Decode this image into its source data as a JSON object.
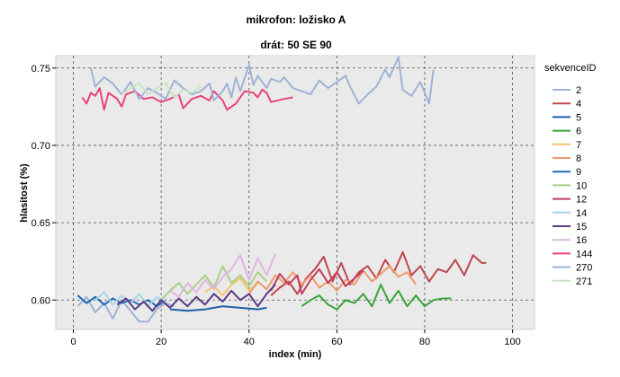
{
  "chart_data": {
    "type": "line",
    "title": "mikrofon: ložisko A",
    "subtitle": "drát: 50 SE 90",
    "xlabel": "index (min)",
    "ylabel": "hlasitost (%)",
    "xlim": [
      -4,
      105
    ],
    "ylim": [
      0.581,
      0.758
    ],
    "x_ticks": [
      0,
      20,
      40,
      60,
      80,
      100
    ],
    "y_ticks": [
      0.6,
      0.65,
      0.7,
      0.75
    ],
    "y_tick_labels": [
      "0.60",
      "0.65",
      "0.70",
      "0.75"
    ],
    "grid": true,
    "legend_title": "sekvenceID",
    "legend_position": "right",
    "series": [
      {
        "name": "2",
        "color": "#9fb3d6",
        "points": [
          [
            1,
            0.596
          ],
          [
            3,
            0.602
          ],
          [
            5,
            0.592
          ],
          [
            7,
            0.598
          ],
          [
            9,
            0.588
          ],
          [
            11,
            0.6
          ],
          [
            13,
            0.593
          ],
          [
            15,
            0.586
          ],
          [
            17,
            0.586
          ],
          [
            19,
            0.594
          ],
          [
            21,
            0.598
          ],
          [
            23,
            0.596
          ]
        ]
      },
      {
        "name": "4",
        "color": "#c0464f",
        "points": [
          [
            45,
            0.603
          ],
          [
            47,
            0.608
          ],
          [
            49,
            0.612
          ],
          [
            51,
            0.604
          ],
          [
            53,
            0.614
          ],
          [
            55,
            0.62
          ],
          [
            57,
            0.628
          ],
          [
            59,
            0.612
          ],
          [
            61,
            0.624
          ],
          [
            63,
            0.61
          ],
          [
            65,
            0.618
          ],
          [
            67,
            0.622
          ],
          [
            69,
            0.614
          ],
          [
            71,
            0.626
          ],
          [
            73,
            0.618
          ],
          [
            75,
            0.631
          ],
          [
            77,
            0.616
          ],
          [
            79,
            0.622
          ],
          [
            81,
            0.612
          ],
          [
            83,
            0.62
          ],
          [
            85,
            0.618
          ],
          [
            87,
            0.626
          ],
          [
            89,
            0.616
          ],
          [
            91,
            0.629
          ],
          [
            93,
            0.624
          ],
          [
            94,
            0.624
          ]
        ]
      },
      {
        "name": "5",
        "color": "#1f5fa8",
        "points": [
          [
            22,
            0.594
          ],
          [
            26,
            0.593
          ],
          [
            30,
            0.594
          ],
          [
            34,
            0.596
          ],
          [
            38,
            0.595
          ],
          [
            42,
            0.594
          ],
          [
            44,
            0.595
          ]
        ]
      },
      {
        "name": "6",
        "color": "#3aa33a",
        "points": [
          [
            52,
            0.596
          ],
          [
            54,
            0.6
          ],
          [
            56,
            0.603
          ],
          [
            58,
            0.597
          ],
          [
            60,
            0.594
          ],
          [
            62,
            0.6
          ],
          [
            64,
            0.598
          ],
          [
            66,
            0.604
          ],
          [
            68,
            0.596
          ],
          [
            70,
            0.61
          ],
          [
            72,
            0.598
          ],
          [
            74,
            0.606
          ],
          [
            76,
            0.596
          ],
          [
            78,
            0.603
          ],
          [
            80,
            0.596
          ],
          [
            82,
            0.6
          ],
          [
            84,
            0.601
          ],
          [
            86,
            0.601
          ]
        ]
      },
      {
        "name": "7",
        "color": "#f5c56a",
        "points": [
          [
            30,
            0.605
          ],
          [
            32,
            0.609
          ],
          [
            34,
            0.603
          ],
          [
            36,
            0.61
          ],
          [
            38,
            0.614
          ],
          [
            40,
            0.606
          ],
          [
            42,
            0.611
          ]
        ]
      },
      {
        "name": "8",
        "color": "#ef9a6c",
        "points": [
          [
            40,
            0.604
          ],
          [
            42,
            0.612
          ],
          [
            44,
            0.607
          ],
          [
            46,
            0.616
          ],
          [
            48,
            0.611
          ],
          [
            50,
            0.618
          ],
          [
            52,
            0.61
          ],
          [
            54,
            0.616
          ],
          [
            56,
            0.608
          ],
          [
            58,
            0.612
          ],
          [
            60,
            0.606
          ],
          [
            62,
            0.613
          ],
          [
            64,
            0.61
          ],
          [
            66,
            0.619
          ],
          [
            68,
            0.612
          ],
          [
            70,
            0.617
          ],
          [
            72,
            0.622
          ],
          [
            74,
            0.615
          ],
          [
            76,
            0.618
          ],
          [
            78,
            0.61
          ]
        ]
      },
      {
        "name": "9",
        "color": "#1c6bb5",
        "points": [
          [
            1,
            0.603
          ],
          [
            3,
            0.598
          ],
          [
            5,
            0.602
          ],
          [
            7,
            0.597
          ],
          [
            9,
            0.601
          ],
          [
            11,
            0.598
          ],
          [
            13,
            0.6
          ],
          [
            15,
            0.597
          ],
          [
            17,
            0.6
          ],
          [
            19,
            0.596
          ],
          [
            21,
            0.6
          ]
        ]
      },
      {
        "name": "10",
        "color": "#a9cf87",
        "points": [
          [
            20,
            0.6
          ],
          [
            22,
            0.606
          ],
          [
            24,
            0.611
          ],
          [
            26,
            0.604
          ],
          [
            28,
            0.61
          ],
          [
            30,
            0.616
          ],
          [
            32,
            0.608
          ],
          [
            34,
            0.622
          ],
          [
            36,
            0.611
          ],
          [
            38,
            0.616
          ],
          [
            40,
            0.609
          ],
          [
            42,
            0.618
          ],
          [
            44,
            0.612
          ]
        ]
      },
      {
        "name": "12",
        "color": "#c43c5c",
        "points": [
          [
            45,
            0.606
          ],
          [
            47,
            0.617
          ],
          [
            49,
            0.61
          ],
          [
            51,
            0.616
          ],
          [
            52,
            0.604
          ],
          [
            54,
            0.613
          ],
          [
            56,
            0.62
          ],
          [
            58,
            0.611
          ],
          [
            60,
            0.618
          ],
          [
            62,
            0.609
          ],
          [
            64,
            0.614
          ],
          [
            66,
            0.619
          ]
        ]
      },
      {
        "name": "14",
        "color": "#a8d4e8",
        "points": [
          [
            5,
            0.6
          ],
          [
            7,
            0.605
          ],
          [
            9,
            0.597
          ],
          [
            11,
            0.603
          ],
          [
            13,
            0.598
          ],
          [
            15,
            0.604
          ],
          [
            17,
            0.596
          ],
          [
            19,
            0.602
          ],
          [
            21,
            0.599
          ]
        ]
      },
      {
        "name": "15",
        "color": "#5e3a84",
        "points": [
          [
            10,
            0.597
          ],
          [
            12,
            0.601
          ],
          [
            14,
            0.594
          ],
          [
            16,
            0.599
          ],
          [
            18,
            0.593
          ],
          [
            20,
            0.6
          ],
          [
            22,
            0.595
          ],
          [
            24,
            0.601
          ],
          [
            26,
            0.596
          ],
          [
            28,
            0.602
          ],
          [
            30,
            0.597
          ],
          [
            32,
            0.604
          ],
          [
            34,
            0.599
          ],
          [
            36,
            0.606
          ],
          [
            38,
            0.6
          ],
          [
            40,
            0.604
          ],
          [
            42,
            0.596
          ],
          [
            44,
            0.604
          ],
          [
            46,
            0.61
          ]
        ]
      },
      {
        "name": "16",
        "color": "#e0b6e2",
        "points": [
          [
            22,
            0.606
          ],
          [
            24,
            0.602
          ],
          [
            26,
            0.611
          ],
          [
            28,
            0.605
          ],
          [
            30,
            0.613
          ],
          [
            32,
            0.607
          ],
          [
            34,
            0.615
          ],
          [
            36,
            0.62
          ],
          [
            38,
            0.629
          ],
          [
            40,
            0.613
          ],
          [
            42,
            0.627
          ],
          [
            44,
            0.616
          ],
          [
            46,
            0.63
          ]
        ]
      },
      {
        "name": "144",
        "color": "#e8447a",
        "points": [
          [
            2,
            0.731
          ],
          [
            3,
            0.727
          ],
          [
            4,
            0.734
          ],
          [
            5,
            0.732
          ],
          [
            6,
            0.737
          ],
          [
            7,
            0.723
          ],
          [
            8,
            0.734
          ],
          [
            10,
            0.73
          ],
          [
            11,
            0.725
          ],
          [
            12,
            0.733
          ],
          [
            14,
            0.735
          ],
          [
            16,
            0.73
          ],
          [
            18,
            0.731
          ],
          [
            20,
            0.728
          ],
          [
            22,
            0.73
          ],
          [
            24,
            0.733
          ],
          [
            25,
            0.724
          ],
          [
            27,
            0.73
          ],
          [
            29,
            0.732
          ],
          [
            31,
            0.729
          ],
          [
            32,
            0.735
          ],
          [
            34,
            0.729
          ],
          [
            35,
            0.723
          ],
          [
            37,
            0.727
          ],
          [
            39,
            0.735
          ],
          [
            41,
            0.734
          ],
          [
            42,
            0.731
          ],
          [
            43,
            0.736
          ],
          [
            44,
            0.734
          ],
          [
            45,
            0.728
          ],
          [
            48,
            0.73
          ],
          [
            50,
            0.731
          ]
        ]
      },
      {
        "name": "270",
        "color": "#9fb3d6",
        "points": [
          [
            4,
            0.75
          ],
          [
            5,
            0.738
          ],
          [
            7,
            0.744
          ],
          [
            9,
            0.74
          ],
          [
            11,
            0.733
          ],
          [
            13,
            0.741
          ],
          [
            15,
            0.73
          ],
          [
            17,
            0.737
          ],
          [
            19,
            0.734
          ],
          [
            21,
            0.73
          ],
          [
            23,
            0.742
          ],
          [
            25,
            0.737
          ],
          [
            27,
            0.733
          ],
          [
            29,
            0.735
          ],
          [
            31,
            0.74
          ],
          [
            32,
            0.729
          ],
          [
            34,
            0.735
          ],
          [
            35,
            0.74
          ],
          [
            36,
            0.731
          ],
          [
            37,
            0.744
          ],
          [
            38,
            0.735
          ],
          [
            40,
            0.752
          ],
          [
            41,
            0.739
          ],
          [
            42,
            0.745
          ],
          [
            44,
            0.737
          ],
          [
            45,
            0.743
          ],
          [
            47,
            0.741
          ],
          [
            48,
            0.744
          ],
          [
            50,
            0.737
          ],
          [
            52,
            0.735
          ],
          [
            54,
            0.733
          ],
          [
            56,
            0.742
          ],
          [
            58,
            0.737
          ],
          [
            60,
            0.741
          ],
          [
            62,
            0.745
          ],
          [
            63,
            0.738
          ],
          [
            65,
            0.727
          ],
          [
            67,
            0.733
          ],
          [
            69,
            0.738
          ],
          [
            71,
            0.749
          ],
          [
            72,
            0.744
          ],
          [
            74,
            0.757
          ],
          [
            75,
            0.736
          ],
          [
            77,
            0.732
          ],
          [
            79,
            0.741
          ],
          [
            81,
            0.727
          ],
          [
            82,
            0.749
          ]
        ]
      },
      {
        "name": "271",
        "color": "#c8e3c4",
        "points": [
          [
            11,
            0.733
          ],
          [
            13,
            0.737
          ],
          [
            15,
            0.74
          ],
          [
            17,
            0.733
          ],
          [
            19,
            0.737
          ],
          [
            21,
            0.74
          ],
          [
            23,
            0.731
          ],
          [
            25,
            0.736
          ],
          [
            27,
            0.734
          ],
          [
            29,
            0.738
          ]
        ]
      }
    ]
  }
}
